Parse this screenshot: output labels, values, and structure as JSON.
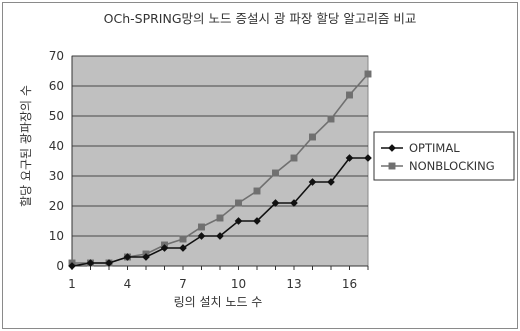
{
  "chart_data": {
    "type": "line",
    "title": "OCh-SPRING망의 노드 증설시 광 파장 할당 알고리즘 비교",
    "xlabel": "링의 설치 노드 수",
    "ylabel": "할당 요구된 광파장의 수",
    "x": [
      1,
      2,
      3,
      4,
      5,
      6,
      7,
      8,
      9,
      10,
      11,
      12,
      13,
      14,
      15,
      16,
      17
    ],
    "x_ticks": [
      "1",
      "4",
      "7",
      "10",
      "13",
      "16"
    ],
    "ylim": [
      0,
      70
    ],
    "y_ticks": [
      "0",
      "10",
      "20",
      "30",
      "40",
      "50",
      "60",
      "70"
    ],
    "grid": true,
    "legend_position": "right",
    "plot_background": "#c0c0c0",
    "series": [
      {
        "name": "OPTIMAL",
        "color": "#111111",
        "marker": "diamond",
        "values": [
          0,
          1,
          1,
          3,
          3,
          6,
          6,
          10,
          10,
          15,
          15,
          21,
          21,
          28,
          28,
          36,
          36
        ]
      },
      {
        "name": "NONBLOCKING",
        "color": "#707070",
        "marker": "square",
        "values": [
          1,
          1,
          1,
          3,
          4,
          7,
          9,
          13,
          16,
          21,
          25,
          31,
          36,
          43,
          49,
          57,
          64
        ]
      }
    ]
  }
}
